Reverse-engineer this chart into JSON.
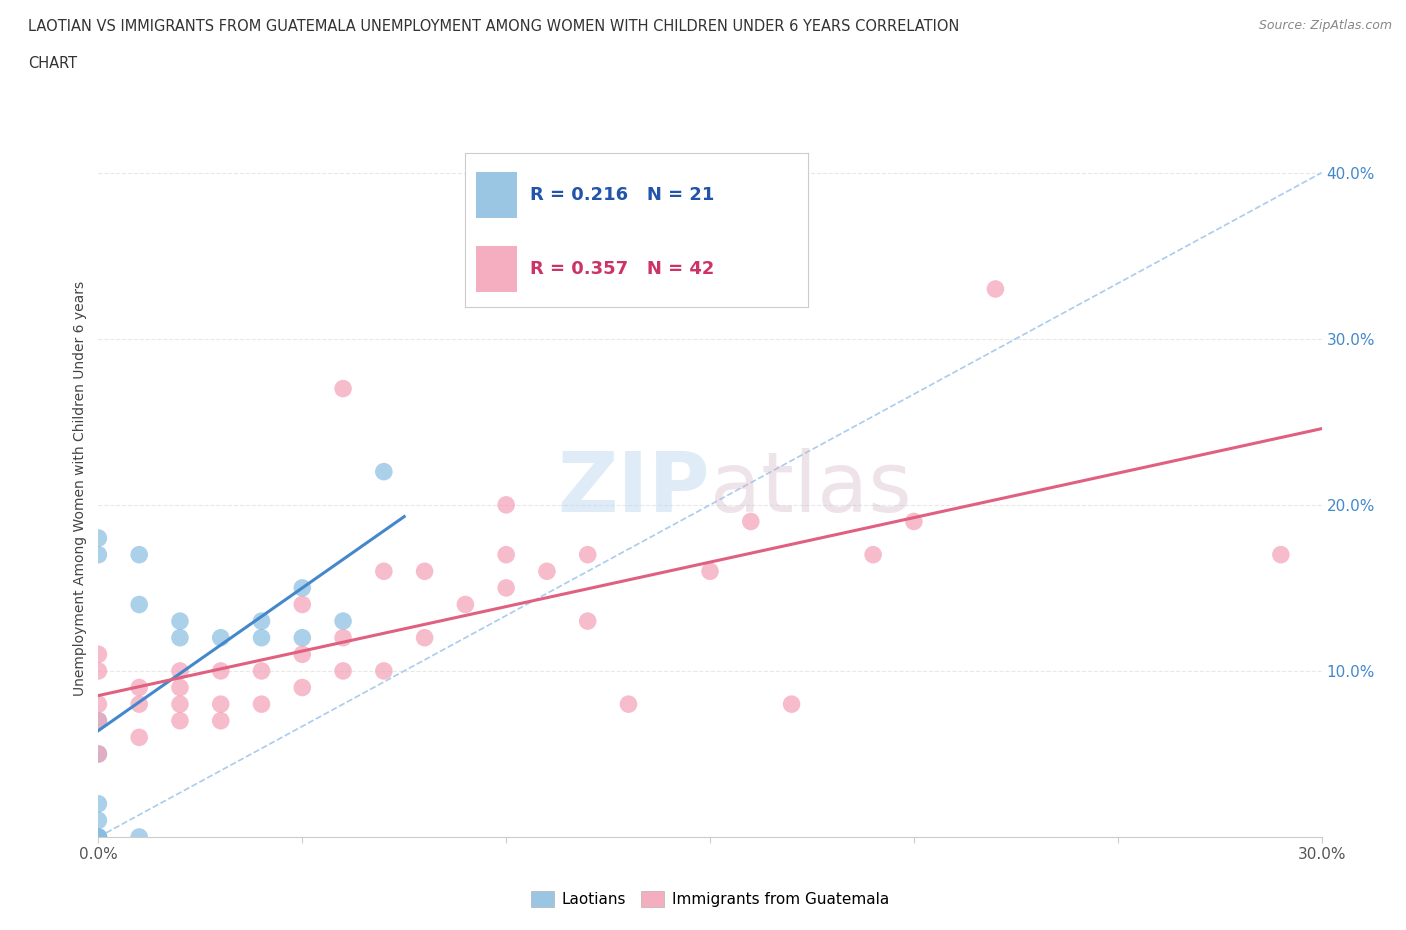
{
  "title_line1": "LAOTIAN VS IMMIGRANTS FROM GUATEMALA UNEMPLOYMENT AMONG WOMEN WITH CHILDREN UNDER 6 YEARS CORRELATION",
  "title_line2": "CHART",
  "source": "Source: ZipAtlas.com",
  "ylabel": "Unemployment Among Women with Children Under 6 years",
  "xlim": [
    0.0,
    0.3
  ],
  "ylim": [
    0.0,
    0.42
  ],
  "yticks": [
    0.0,
    0.1,
    0.2,
    0.3,
    0.4
  ],
  "ytick_labels": [
    "",
    "10.0%",
    "20.0%",
    "30.0%",
    "40.0%"
  ],
  "xtick_left_label": "0.0%",
  "xtick_right_label": "30.0%",
  "watermark": "ZIPatlas",
  "R_laotian": 0.216,
  "N_laotian": 21,
  "R_guatemala": 0.357,
  "N_guatemala": 42,
  "laotian_color": "#88bce0",
  "guatemala_color": "#f4a0b5",
  "laotian_line_color": "#4488cc",
  "guatemala_line_color": "#e06080",
  "dash_color": "#aaccee",
  "grid_color": "#e8e8e8",
  "ytick_color": "#4488cc",
  "laotian_x": [
    0.0,
    0.0,
    0.0,
    0.0,
    0.0,
    0.0,
    0.0,
    0.0,
    0.0,
    0.01,
    0.01,
    0.01,
    0.02,
    0.02,
    0.03,
    0.04,
    0.04,
    0.05,
    0.05,
    0.06,
    0.07
  ],
  "laotian_y": [
    0.0,
    0.0,
    0.0,
    0.01,
    0.02,
    0.05,
    0.07,
    0.17,
    0.18,
    0.0,
    0.14,
    0.17,
    0.12,
    0.13,
    0.12,
    0.12,
    0.13,
    0.12,
    0.15,
    0.13,
    0.22
  ],
  "guatemala_x": [
    0.0,
    0.0,
    0.0,
    0.0,
    0.0,
    0.01,
    0.01,
    0.01,
    0.02,
    0.02,
    0.02,
    0.02,
    0.03,
    0.03,
    0.03,
    0.04,
    0.04,
    0.05,
    0.05,
    0.05,
    0.06,
    0.06,
    0.06,
    0.07,
    0.07,
    0.08,
    0.08,
    0.09,
    0.1,
    0.1,
    0.1,
    0.11,
    0.12,
    0.12,
    0.13,
    0.15,
    0.16,
    0.17,
    0.19,
    0.2,
    0.22,
    0.29
  ],
  "guatemala_y": [
    0.05,
    0.07,
    0.08,
    0.1,
    0.11,
    0.06,
    0.08,
    0.09,
    0.07,
    0.08,
    0.09,
    0.1,
    0.07,
    0.08,
    0.1,
    0.08,
    0.1,
    0.09,
    0.11,
    0.14,
    0.1,
    0.12,
    0.27,
    0.1,
    0.16,
    0.12,
    0.16,
    0.14,
    0.15,
    0.17,
    0.2,
    0.16,
    0.17,
    0.13,
    0.08,
    0.16,
    0.19,
    0.08,
    0.17,
    0.19,
    0.33,
    0.17
  ]
}
